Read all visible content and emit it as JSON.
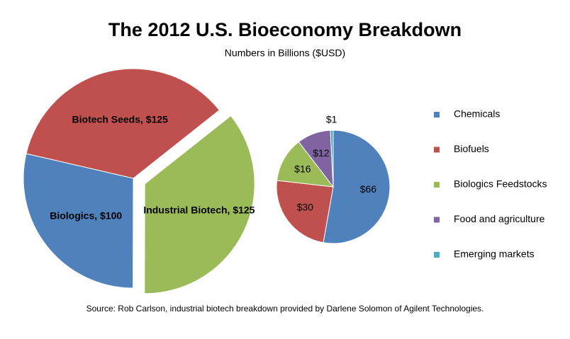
{
  "chart_data": [
    {
      "type": "pie",
      "title": "The 2012 U.S. Bioeconomy Breakdown",
      "subtitle": "Numbers  in Billions ($USD)",
      "source": "Source: Rob Carlson, industrial biotech breakdown provided by Darlene Solomon of Agilent Technologies.",
      "categories": [
        "Biotech Seeds",
        "Industrial Biotech",
        "Biologics"
      ],
      "values": [
        125,
        125,
        100
      ],
      "value_labels": [
        "Biotech Seeds, $125",
        "Industrial Biotech, $125",
        "Biologics, $100"
      ],
      "colors": [
        "#c0504d",
        "#9bbb59",
        "#4f81bd"
      ]
    },
    {
      "type": "pie",
      "categories": [
        "Chemicals",
        "Biofuels",
        "Biologics Feedstocks",
        "Food and agriculture",
        "Emerging markets"
      ],
      "values": [
        66,
        30,
        16,
        12,
        1
      ],
      "value_labels": [
        "$66",
        "$30",
        "$16",
        "$12",
        "$1"
      ],
      "colors": [
        "#4f81bd",
        "#c0504d",
        "#9bbb59",
        "#8064a2",
        "#4bacc6"
      ],
      "legend": "right"
    }
  ]
}
